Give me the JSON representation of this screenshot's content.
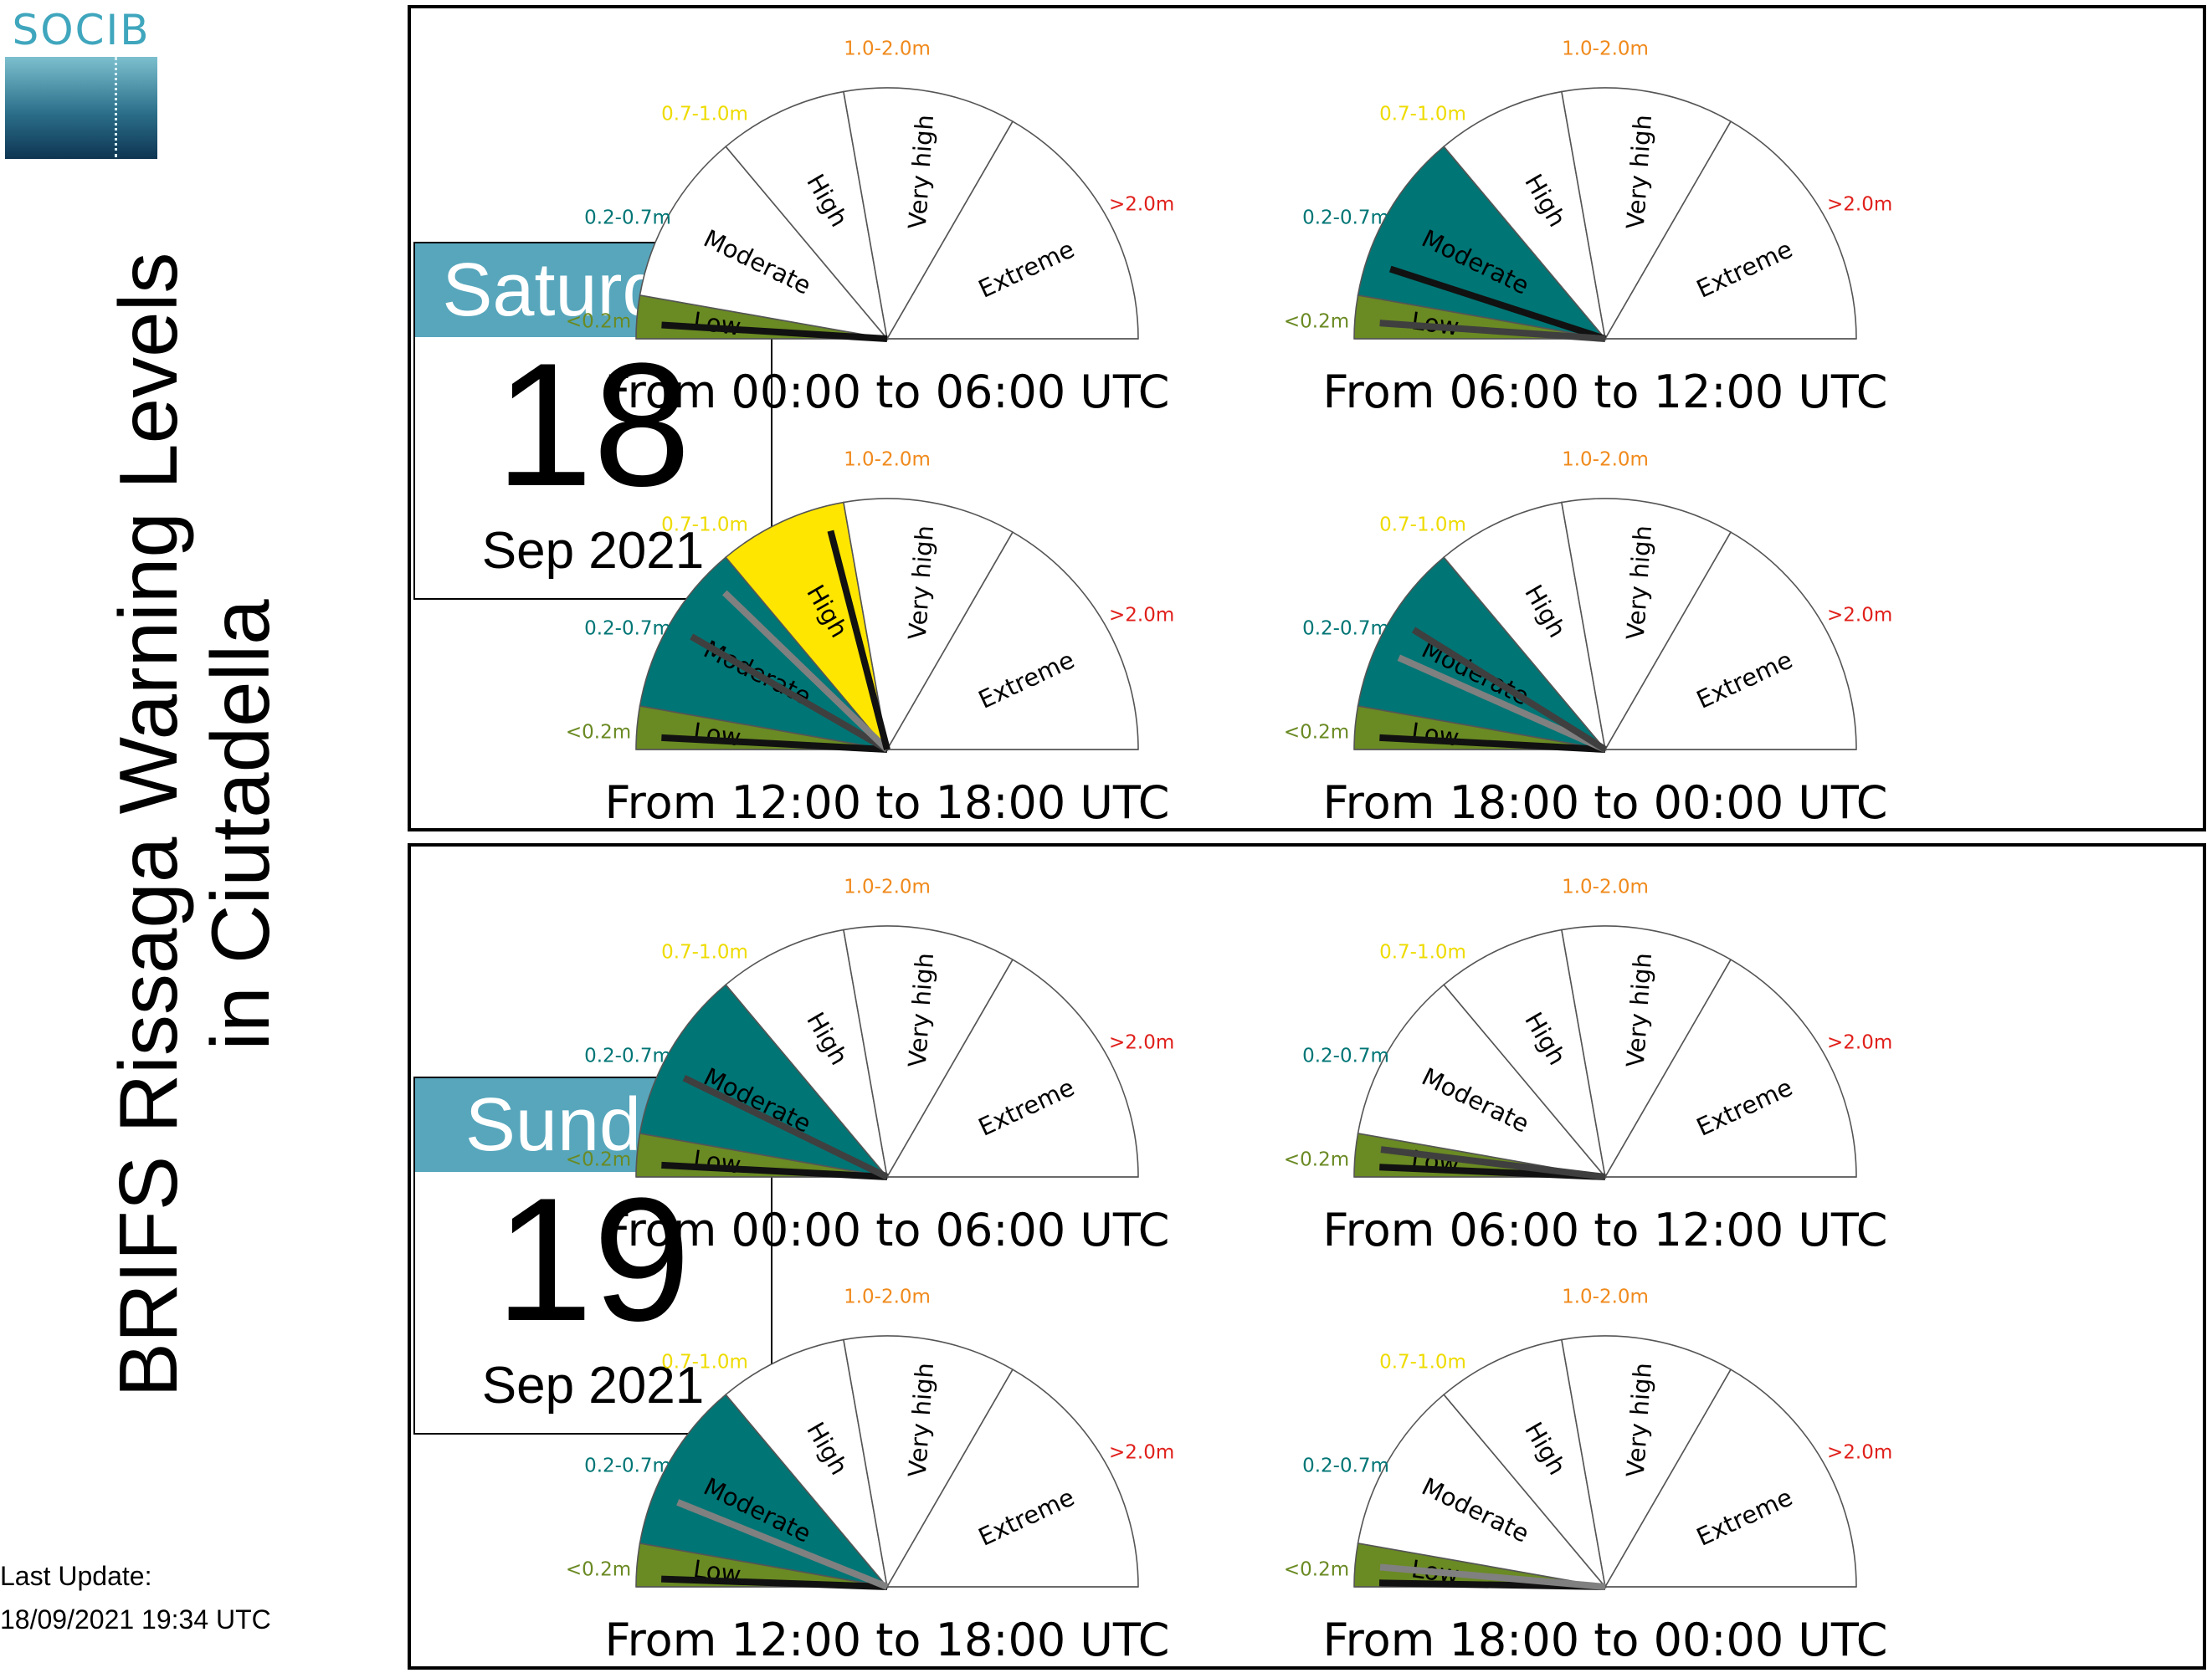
{
  "logo": {
    "text": "SOCIB"
  },
  "title": {
    "line1": "BRIFS Rissaga Warning Levels",
    "line2": "in Ciutadella"
  },
  "last_update": {
    "label": "Last Update:",
    "value": "18/09/2021 19:34 UTC"
  },
  "colors": {
    "low": "#6a8a23",
    "moderate": "#007575",
    "high": "#ffe600",
    "very_high": "#f08a1c",
    "extreme": "#e0201b",
    "day_header": "#57a6bc"
  },
  "chart_data": {
    "type": "gauge",
    "levels": [
      {
        "name": "Low",
        "range": "<0.2m",
        "color": "#6a8a23"
      },
      {
        "name": "Moderate",
        "range": "0.2-0.7m",
        "color": "#007575"
      },
      {
        "name": "High",
        "range": "0.7-1.0m",
        "color": "#ffe600"
      },
      {
        "name": "Very high",
        "range": "1.0-2.0m",
        "color": "#f08a1c"
      },
      {
        "name": "Extreme",
        "range": ">2.0m",
        "color": "#e0201b"
      }
    ],
    "days": [
      {
        "weekday": "Saturday",
        "day": "18",
        "month": "Sep 2021",
        "periods": [
          {
            "label": "From 00:00 to 06:00 UTC",
            "level": "Low",
            "needles": [
              {
                "shade": "black",
                "level": "Low",
                "position": 0.35
              }
            ]
          },
          {
            "label": "From 06:00 to 12:00 UTC",
            "level": "Moderate",
            "needles": [
              {
                "shade": "black",
                "level": "Moderate",
                "position": 0.2
              },
              {
                "shade": "dark-gray",
                "level": "Low",
                "position": 0.4
              }
            ]
          },
          {
            "label": "From 12:00 to 18:00 UTC",
            "level": "High",
            "needles": [
              {
                "shade": "black",
                "level": "Low",
                "position": 0.3
              },
              {
                "shade": "dark-gray",
                "level": "Moderate",
                "position": 0.5
              },
              {
                "shade": "gray",
                "level": "Moderate",
                "position": 0.85
              },
              {
                "shade": "black",
                "level": "High",
                "position": 0.85
              }
            ]
          },
          {
            "label": "From 18:00 to 00:00 UTC",
            "level": "Moderate",
            "needles": [
              {
                "shade": "black",
                "level": "Low",
                "position": 0.3
              },
              {
                "shade": "gray",
                "level": "Moderate",
                "position": 0.35
              },
              {
                "shade": "dark-gray",
                "level": "Moderate",
                "position": 0.55
              }
            ]
          }
        ]
      },
      {
        "weekday": "Sunday",
        "day": "19",
        "month": "Sep 2021",
        "periods": [
          {
            "label": "From 00:00 to 06:00 UTC",
            "level": "Moderate",
            "needles": [
              {
                "shade": "black",
                "level": "Low",
                "position": 0.3
              },
              {
                "shade": "dark-gray",
                "level": "Moderate",
                "position": 0.4
              }
            ]
          },
          {
            "label": "From 06:00 to 12:00 UTC",
            "level": "Low",
            "needles": [
              {
                "shade": "black",
                "level": "Low",
                "position": 0.25
              },
              {
                "shade": "dark-gray",
                "level": "Low",
                "position": 0.7
              }
            ]
          },
          {
            "label": "From 12:00 to 18:00 UTC",
            "level": "Moderate",
            "needles": [
              {
                "shade": "black",
                "level": "Low",
                "position": 0.2
              },
              {
                "shade": "gray",
                "level": "Moderate",
                "position": 0.3
              }
            ]
          },
          {
            "label": "From 18:00 to 00:00 UTC",
            "level": "Low",
            "needles": [
              {
                "shade": "black",
                "level": "Low",
                "position": 0.1
              },
              {
                "shade": "gray",
                "level": "Low",
                "position": 0.5
              }
            ]
          }
        ]
      }
    ]
  }
}
